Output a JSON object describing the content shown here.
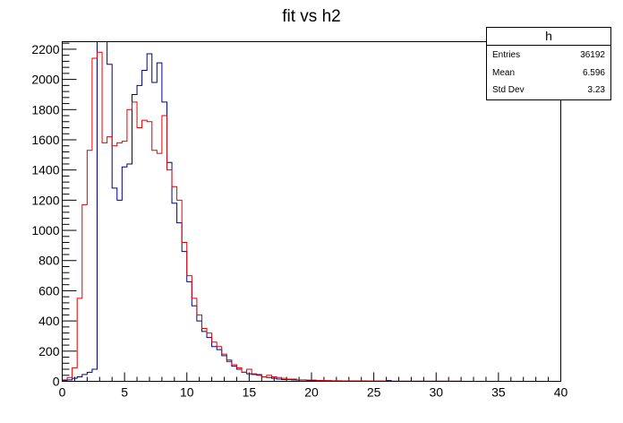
{
  "chart_data": {
    "type": "histogram-step",
    "title": "fit vs h2",
    "xlabel": "",
    "ylabel": "",
    "xlim": [
      0,
      40
    ],
    "ylim": [
      0,
      2250
    ],
    "x_ticks": [
      0,
      5,
      10,
      15,
      20,
      25,
      30,
      35,
      40
    ],
    "y_ticks": [
      0,
      200,
      400,
      600,
      800,
      1000,
      1200,
      1400,
      1600,
      1800,
      2000,
      2200
    ],
    "grid": false,
    "colors": {
      "blue": "#000080",
      "red": "#e00000"
    },
    "bin_edges_x": [
      0.0,
      0.4,
      0.8,
      1.2,
      1.6,
      2.0,
      2.4,
      2.8,
      3.2,
      3.6,
      4.0,
      4.4,
      4.8,
      5.2,
      5.6,
      6.0,
      6.4,
      6.8,
      7.2,
      7.6,
      8.0,
      8.4,
      8.8,
      9.2,
      9.6,
      10.0,
      10.4,
      10.8,
      11.2,
      11.6,
      12.0,
      12.4,
      12.8,
      13.2,
      13.6,
      14.0,
      14.4,
      14.8,
      15.2,
      15.6,
      16.0,
      16.4,
      16.8,
      17.2,
      17.6,
      18.0,
      18.4,
      18.8,
      19.2,
      19.6,
      20.0,
      20.4,
      20.8,
      21.2,
      21.6,
      22.0,
      22.4,
      22.8,
      23.2,
      23.6,
      24.0,
      24.4,
      24.8,
      25.2,
      25.6,
      26.0,
      26.4,
      26.8,
      27.2,
      27.6,
      28.0,
      28.4,
      28.8,
      29.2,
      29.6,
      30.0,
      30.4,
      30.8,
      31.2,
      31.6,
      32.0,
      32.4,
      32.8,
      33.2,
      33.6,
      34.0,
      34.4,
      34.8,
      35.2,
      35.6,
      36.0,
      36.4,
      36.8,
      37.2,
      37.6,
      38.0,
      38.4,
      38.8,
      39.2,
      39.6,
      40.0
    ],
    "series": [
      {
        "name": "h",
        "color": "#000080",
        "values": [
          5,
          10,
          20,
          30,
          45,
          60,
          80,
          2330,
          2250,
          2100,
          1280,
          1200,
          1420,
          1440,
          1900,
          1960,
          2060,
          2170,
          1980,
          2110,
          1850,
          1450,
          1180,
          1050,
          860,
          660,
          500,
          400,
          330,
          290,
          230,
          210,
          170,
          140,
          100,
          80,
          60,
          50,
          45,
          40,
          30,
          25,
          20,
          15,
          12,
          12,
          10,
          8,
          8,
          6,
          5,
          4,
          4,
          3,
          3,
          3,
          2,
          2,
          2,
          2,
          2,
          1,
          1,
          1,
          1,
          5,
          1,
          1,
          1,
          1,
          1,
          1,
          1,
          1,
          1,
          1,
          1,
          1,
          1,
          1,
          0,
          0,
          0,
          0,
          0,
          0,
          0,
          0,
          0,
          0,
          0,
          0,
          0,
          0,
          0,
          0,
          0,
          0,
          0,
          0
        ]
      },
      {
        "name": "fit",
        "color": "#e00000",
        "values": [
          10,
          25,
          90,
          550,
          1170,
          1530,
          2140,
          2180,
          1580,
          1620,
          1560,
          1580,
          1590,
          1800,
          1850,
          1680,
          1730,
          1720,
          1530,
          1510,
          1760,
          1400,
          1290,
          1200,
          920,
          700,
          550,
          440,
          350,
          320,
          260,
          230,
          180,
          130,
          110,
          90,
          60,
          80,
          50,
          45,
          30,
          40,
          30,
          25,
          20,
          15,
          15,
          10,
          10,
          8,
          8,
          6,
          5,
          5,
          4,
          4,
          3,
          3,
          3,
          3,
          2,
          2,
          2,
          2,
          2,
          1,
          1,
          1,
          1,
          1,
          1,
          1,
          1,
          1,
          1,
          1,
          1,
          1,
          1,
          1,
          0,
          0,
          0,
          0,
          0,
          0,
          0,
          0,
          0,
          0,
          0,
          0,
          0,
          0,
          0,
          0,
          0,
          0,
          0,
          0
        ]
      }
    ],
    "stats_box": {
      "title": "h",
      "rows": [
        {
          "label": "Entries",
          "value": "36192"
        },
        {
          "label": "Mean",
          "value": "6.596"
        },
        {
          "label": "Std Dev",
          "value": "3.23"
        }
      ]
    }
  }
}
